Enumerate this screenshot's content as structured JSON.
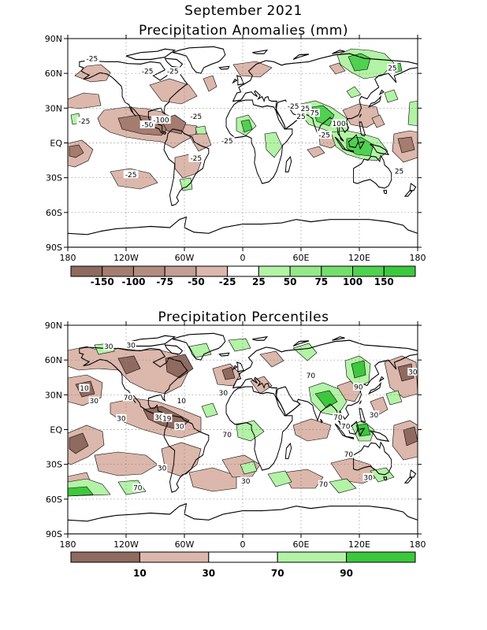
{
  "chart_data": [
    {
      "type": "heatmap",
      "title": "September 2021",
      "subtitle": "Precipitation Anomalies (mm)",
      "x_ticks": [
        "180",
        "120W",
        "60W",
        "0",
        "60E",
        "120E",
        "180"
      ],
      "y_ticks": [
        "90N",
        "60N",
        "30N",
        "EQ",
        "30S",
        "60S",
        "90S"
      ],
      "grid": true,
      "colorbar": {
        "labels": [
          "-150",
          "-100",
          "-75",
          "-50",
          "-25",
          "25",
          "50",
          "75",
          "100",
          "150"
        ],
        "colors": [
          "#8f6a5f",
          "#a47c70",
          "#b38c80",
          "#c29e93",
          "#dcb7ab",
          "#ffffff",
          "#b3f3a6",
          "#94e88a",
          "#74de6d",
          "#50d150",
          "#3cc83c"
        ]
      },
      "contour_labels": [
        {
          "text": "-25",
          "lon": -155,
          "lat": 73
        },
        {
          "text": "-25",
          "lon": -98,
          "lat": 62
        },
        {
          "text": "-25",
          "lon": -72,
          "lat": 62
        },
        {
          "text": "-25",
          "lon": -163,
          "lat": 19
        },
        {
          "text": "-25",
          "lon": -115,
          "lat": -27
        },
        {
          "text": "-25",
          "lon": -48,
          "lat": 23
        },
        {
          "text": "-25",
          "lon": -48,
          "lat": -13
        },
        {
          "text": "-50",
          "lon": -98,
          "lat": 16
        },
        {
          "text": "-100",
          "lon": -84,
          "lat": 20
        },
        {
          "text": "-25",
          "lon": -16,
          "lat": 2
        },
        {
          "text": "-25",
          "lon": 63,
          "lat": 30
        },
        {
          "text": "-25",
          "lon": 52,
          "lat": 32
        },
        {
          "text": "25",
          "lon": 60,
          "lat": 23
        },
        {
          "text": "75",
          "lon": 74,
          "lat": 26
        },
        {
          "text": "100",
          "lon": 99,
          "lat": 17
        },
        {
          "text": "-25",
          "lon": 84,
          "lat": 7
        },
        {
          "text": "25",
          "lon": 154,
          "lat": 65
        },
        {
          "text": "25",
          "lon": 161,
          "lat": -24
        }
      ]
    },
    {
      "type": "heatmap",
      "title": "Precipitation Percentiles",
      "x_ticks": [
        "180",
        "120W",
        "60W",
        "0",
        "60E",
        "120E",
        "180"
      ],
      "y_ticks": [
        "90N",
        "60N",
        "30N",
        "EQ",
        "30S",
        "60S",
        "90S"
      ],
      "grid": true,
      "colorbar": {
        "labels": [
          "10",
          "30",
          "70",
          "90"
        ],
        "colors": [
          "#8f6a5f",
          "#dcb7ab",
          "#ffffff",
          "#b3f3a6",
          "#3cc83c"
        ]
      },
      "contour_labels": [
        {
          "text": "30",
          "lon": -138,
          "lat": 72
        },
        {
          "text": "30",
          "lon": -115,
          "lat": 73
        },
        {
          "text": "70",
          "lon": -118,
          "lat": 28
        },
        {
          "text": "10",
          "lon": -163,
          "lat": 36
        },
        {
          "text": "30",
          "lon": -153,
          "lat": 25
        },
        {
          "text": "30",
          "lon": -125,
          "lat": 10
        },
        {
          "text": "30",
          "lon": -86,
          "lat": 11
        },
        {
          "text": "19",
          "lon": -78,
          "lat": 10
        },
        {
          "text": "10",
          "lon": -63,
          "lat": 25
        },
        {
          "text": "30",
          "lon": -65,
          "lat": 3
        },
        {
          "text": "30",
          "lon": -83,
          "lat": -33
        },
        {
          "text": "70",
          "lon": -108,
          "lat": -50
        },
        {
          "text": "30",
          "lon": -20,
          "lat": 32
        },
        {
          "text": "70",
          "lon": 70,
          "lat": 47
        },
        {
          "text": "90",
          "lon": 119,
          "lat": 37
        },
        {
          "text": "70",
          "lon": -16,
          "lat": -4
        },
        {
          "text": "30",
          "lon": 3,
          "lat": -44
        },
        {
          "text": "70",
          "lon": 83,
          "lat": -47
        },
        {
          "text": "70",
          "lon": 98,
          "lat": 11
        },
        {
          "text": "70",
          "lon": 106,
          "lat": 3
        },
        {
          "text": "70",
          "lon": 109,
          "lat": -21
        },
        {
          "text": "30",
          "lon": 129,
          "lat": -41
        },
        {
          "text": "30",
          "lon": 135,
          "lat": 13
        },
        {
          "text": "30",
          "lon": 175,
          "lat": 50
        }
      ]
    }
  ]
}
